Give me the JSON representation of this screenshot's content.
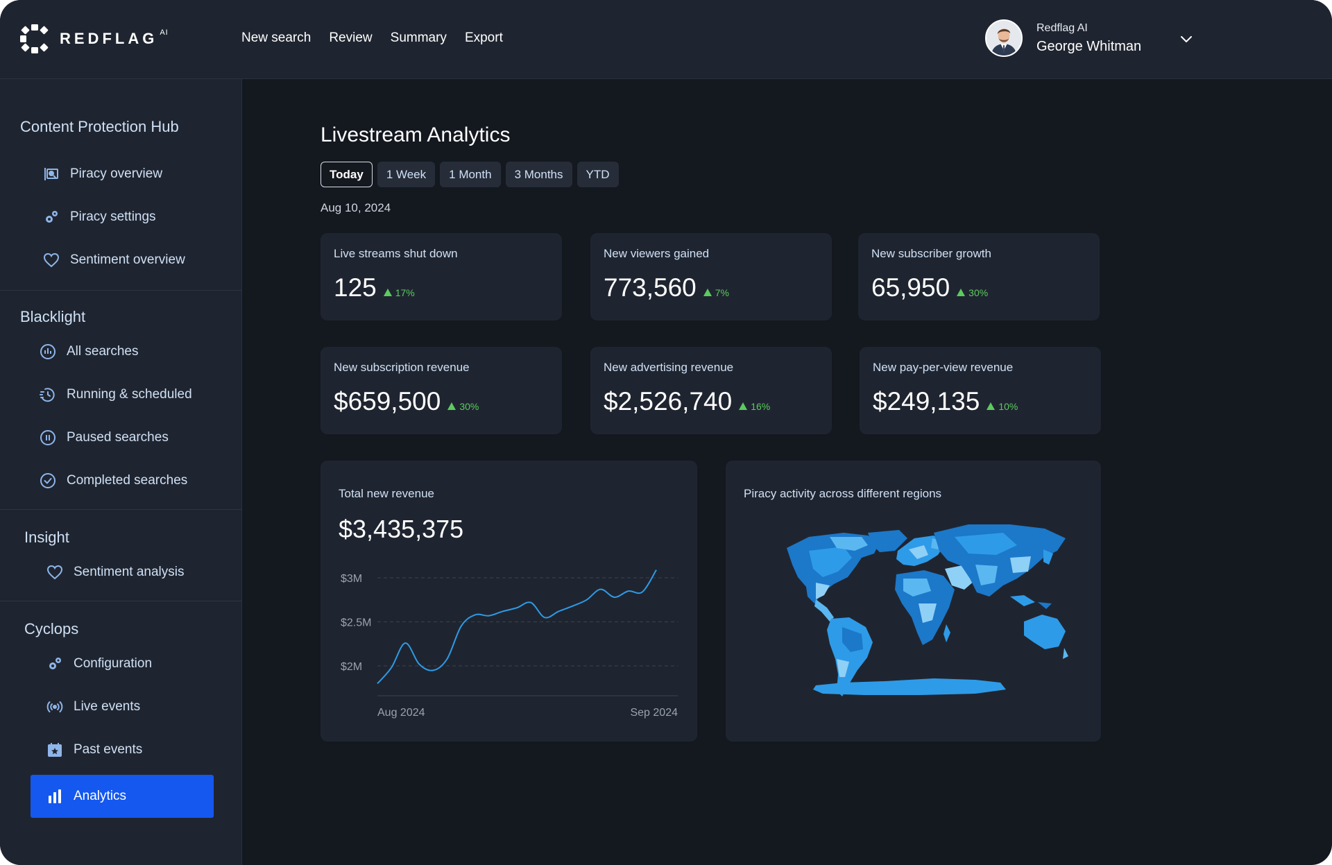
{
  "brand": {
    "name": "REDFLAG",
    "superscript": "AI"
  },
  "top_nav": [
    "New search",
    "Review",
    "Summary",
    "Export"
  ],
  "user": {
    "org": "Redflag AI",
    "name": "George Whitman"
  },
  "sidebar": {
    "sections": [
      {
        "title": "Content Protection Hub",
        "items": [
          {
            "label": "Piracy overview",
            "icon": "piracy-overview-icon"
          },
          {
            "label": "Piracy settings",
            "icon": "gears-icon"
          },
          {
            "label": "Sentiment overview",
            "icon": "heart-icon"
          }
        ]
      },
      {
        "title": "Blacklight",
        "items": [
          {
            "label": "All searches",
            "icon": "radar-icon"
          },
          {
            "label": "Running & scheduled",
            "icon": "running-clock-icon"
          },
          {
            "label": "Paused searches",
            "icon": "pause-circle-icon"
          },
          {
            "label": "Completed searches",
            "icon": "check-circle-icon"
          }
        ]
      },
      {
        "title": "Insight",
        "items": [
          {
            "label": "Sentiment analysis",
            "icon": "heart-icon"
          }
        ]
      },
      {
        "title": "Cyclops",
        "items": [
          {
            "label": "Configuration",
            "icon": "gears-icon"
          },
          {
            "label": "Live events",
            "icon": "broadcast-icon"
          },
          {
            "label": "Past events",
            "icon": "calendar-star-icon"
          },
          {
            "label": "Analytics",
            "icon": "bar-chart-icon",
            "active": true
          }
        ]
      }
    ]
  },
  "main": {
    "title": "Livestream Analytics",
    "tabs": [
      {
        "label": "Today",
        "active": true
      },
      {
        "label": "1 Week"
      },
      {
        "label": "1 Month"
      },
      {
        "label": "3 Months"
      },
      {
        "label": "YTD"
      }
    ],
    "date": "Aug 10, 2024",
    "stats": [
      {
        "label": "Live streams shut down",
        "value": "125",
        "delta": "17%"
      },
      {
        "label": "New viewers gained",
        "value": "773,560",
        "delta": "7%"
      },
      {
        "label": "New subscriber growth",
        "value": "65,950",
        "delta": "30%"
      },
      {
        "label": "New subscription revenue",
        "value": "$659,500",
        "delta": "30%"
      },
      {
        "label": "New advertising revenue",
        "value": "$2,526,740",
        "delta": "16%"
      },
      {
        "label": "New pay-per-view revenue",
        "value": "$249,135",
        "delta": "10%"
      }
    ],
    "revenue_card": {
      "title": "Total new revenue",
      "total": "$3,435,375"
    },
    "map_card": {
      "title": "Piracy activity across different regions"
    }
  },
  "colors": {
    "accent": "#1458f0",
    "positive": "#5ccb5f",
    "line": "#2e9be8"
  },
  "chart_data": {
    "type": "line",
    "title": "Total new revenue",
    "x_ticks": [
      "Aug 2024",
      "Sep 2024"
    ],
    "y_ticks": [
      "$3M",
      "$2.5M",
      "$2M"
    ],
    "y_tick_values": [
      3.0,
      2.5,
      2.0
    ],
    "ylim": [
      1.78,
      3.15
    ],
    "grid": true,
    "series": [
      {
        "values": [
          1.8,
          1.98,
          2.26,
          2.02,
          1.95,
          2.08,
          2.45,
          2.58,
          2.57,
          2.62,
          2.66,
          2.72,
          2.55,
          2.62,
          2.68,
          2.75,
          2.87,
          2.78,
          2.85,
          2.84,
          3.09
        ]
      }
    ]
  }
}
